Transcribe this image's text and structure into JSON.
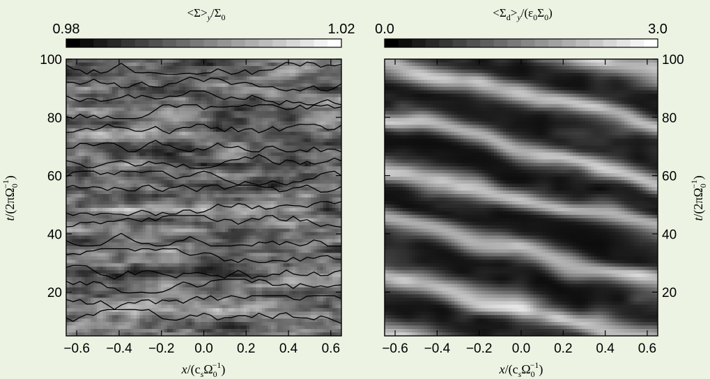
{
  "background_color": "#ecf3e3",
  "chart_data": [
    {
      "type": "heatmap",
      "colormap": "grayscale (black to white)",
      "colorbar": {
        "label_parts": [
          "<Σ>",
          "y",
          "/Σ",
          "0"
        ],
        "min_label": "0.98",
        "max_label": "1.02",
        "range": [
          0.98,
          1.02
        ]
      },
      "xlabel_parts": [
        "x",
        "/(c",
        "s",
        "Ω",
        "0",
        "−1",
        ")"
      ],
      "ylabel_parts": [
        "t",
        "/(2πΩ",
        "0",
        "−1",
        ")"
      ],
      "x_ticks": [
        "−0.6",
        "−0.4",
        "−0.2",
        "0.0",
        "0.2",
        "0.4",
        "0.6"
      ],
      "x_tick_values": [
        -0.6,
        -0.4,
        -0.2,
        0.0,
        0.2,
        0.4,
        0.6
      ],
      "y_ticks": [
        "20",
        "40",
        "60",
        "80",
        "100"
      ],
      "y_tick_values": [
        20,
        40,
        60,
        80,
        100
      ],
      "xlim": [
        -0.65,
        0.65
      ],
      "ylim": [
        5,
        100
      ],
      "y_axis_side": "left",
      "contours": "black contour lines",
      "description_of_field": "noisy horizontal streaks, light bands near t≈15, 30, 48, 68 and 90"
    },
    {
      "type": "heatmap",
      "colormap": "grayscale (black to white)",
      "colorbar": {
        "label_parts": [
          "<Σ",
          "d",
          ">",
          "y",
          "/(ε",
          "0",
          "Σ",
          "0",
          ")"
        ],
        "min_label": "0.0",
        "max_label": "3.0",
        "range": [
          0.0,
          3.0
        ]
      },
      "xlabel_parts": [
        "x",
        "/(c",
        "s",
        "Ω",
        "0",
        "−1",
        ")"
      ],
      "ylabel_parts": [
        "t",
        "/(2πΩ",
        "0",
        "−1",
        ")"
      ],
      "x_ticks": [
        "−0.6",
        "−0.4",
        "−0.2",
        "0.0",
        "0.2",
        "0.4",
        "0.6"
      ],
      "x_tick_values": [
        -0.6,
        -0.4,
        -0.2,
        0.0,
        0.2,
        0.4,
        0.6
      ],
      "y_ticks": [
        "20",
        "40",
        "60",
        "80",
        "100"
      ],
      "y_tick_values": [
        20,
        40,
        60,
        80,
        100
      ],
      "xlim": [
        -0.65,
        0.65
      ],
      "ylim": [
        5,
        100
      ],
      "y_axis_side": "right",
      "contours": "none",
      "description_of_field": "smooth bright diagonal streaks drifting downward toward +x"
    }
  ]
}
